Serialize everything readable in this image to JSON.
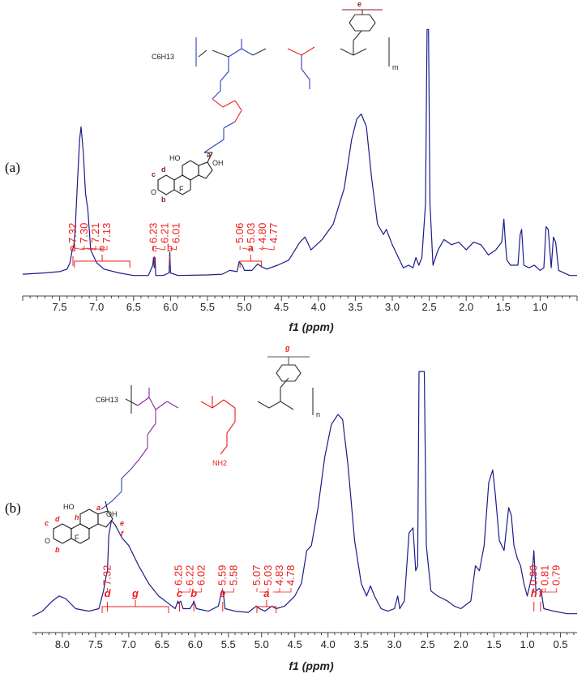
{
  "figure": {
    "colors": {
      "spectrum": "#1c1c8a",
      "annotation": "#ee1c1c",
      "axis": "#444444",
      "blue_linker": "#2b3fc4",
      "purple_backbone": "#8a2ba0",
      "dark_red": "#8b1a1a"
    }
  },
  "chart_data": [
    {
      "panel_label": "(a)",
      "type": "line",
      "xlabel": "f1 (ppm)",
      "xlim": [
        8.0,
        0.5
      ],
      "x_reversed": true,
      "x_ticks": [
        "7.5",
        "7.0",
        "6.5",
        "6.0",
        "5.5",
        "5.0",
        "4.5",
        "4.0",
        "3.5",
        "3.0",
        "2.5",
        "2.0",
        "1.5",
        "1.0"
      ],
      "peak_labels": [
        "7.32",
        "7.30",
        "7.21",
        "7.13",
        "6.23",
        "6.21",
        "6.01",
        "5.06",
        "5.03",
        "4.80",
        "4.77"
      ],
      "assignments": [
        {
          "label": "d",
          "ppm": [
            7.32,
            7.32
          ]
        },
        {
          "label": "e",
          "ppm": [
            7.3,
            6.55
          ]
        },
        {
          "label": "c",
          "ppm": [
            6.23,
            6.21
          ]
        },
        {
          "label": "b",
          "ppm": [
            6.01,
            6.01
          ]
        },
        {
          "label": "a",
          "ppm": [
            5.06,
            4.77
          ]
        }
      ],
      "structure_labels": [
        "e",
        "m",
        "C6H13",
        "a",
        "b",
        "c",
        "d",
        "F",
        "OH",
        "HO",
        "O"
      ],
      "series": [
        {
          "values": [
            [
              8.0,
              0.025
            ],
            [
              7.7,
              0.03
            ],
            [
              7.5,
              0.035
            ],
            [
              7.4,
              0.045
            ],
            [
              7.36,
              0.07
            ],
            [
              7.33,
              0.12
            ],
            [
              7.31,
              0.13
            ],
            [
              7.29,
              0.2
            ],
            [
              7.26,
              0.38
            ],
            [
              7.23,
              0.55
            ],
            [
              7.21,
              0.6
            ],
            [
              7.18,
              0.5
            ],
            [
              7.15,
              0.34
            ],
            [
              7.12,
              0.28
            ],
            [
              7.08,
              0.12
            ],
            [
              7.0,
              0.07
            ],
            [
              6.9,
              0.045
            ],
            [
              6.7,
              0.03
            ],
            [
              6.5,
              0.02
            ],
            [
              6.3,
              0.02
            ],
            [
              6.24,
              0.06
            ],
            [
              6.23,
              0.09
            ],
            [
              6.22,
              0.05
            ],
            [
              6.21,
              0.09
            ],
            [
              6.2,
              0.02
            ],
            [
              6.1,
              0.02
            ],
            [
              6.02,
              0.03
            ],
            [
              6.01,
              0.11
            ],
            [
              6.0,
              0.03
            ],
            [
              5.9,
              0.02
            ],
            [
              5.5,
              0.022
            ],
            [
              5.3,
              0.025
            ],
            [
              5.2,
              0.04
            ],
            [
              5.1,
              0.035
            ],
            [
              5.07,
              0.075
            ],
            [
              5.06,
              0.07
            ],
            [
              5.03,
              0.06
            ],
            [
              5.0,
              0.04
            ],
            [
              4.9,
              0.04
            ],
            [
              4.82,
              0.065
            ],
            [
              4.8,
              0.06
            ],
            [
              4.77,
              0.055
            ],
            [
              4.7,
              0.045
            ],
            [
              4.55,
              0.06
            ],
            [
              4.4,
              0.08
            ],
            [
              4.25,
              0.15
            ],
            [
              4.18,
              0.17
            ],
            [
              4.1,
              0.12
            ],
            [
              3.95,
              0.16
            ],
            [
              3.8,
              0.22
            ],
            [
              3.65,
              0.36
            ],
            [
              3.55,
              0.55
            ],
            [
              3.48,
              0.63
            ],
            [
              3.42,
              0.65
            ],
            [
              3.35,
              0.6
            ],
            [
              3.28,
              0.4
            ],
            [
              3.2,
              0.22
            ],
            [
              3.12,
              0.18
            ],
            [
              3.08,
              0.2
            ],
            [
              3.0,
              0.14
            ],
            [
              2.9,
              0.08
            ],
            [
              2.85,
              0.05
            ],
            [
              2.78,
              0.06
            ],
            [
              2.72,
              0.05
            ],
            [
              2.68,
              0.09
            ],
            [
              2.64,
              0.06
            ],
            [
              2.6,
              0.09
            ],
            [
              2.55,
              0.3
            ],
            [
              2.53,
              0.98
            ],
            [
              2.51,
              0.98
            ],
            [
              2.49,
              0.3
            ],
            [
              2.45,
              0.06
            ],
            [
              2.38,
              0.12
            ],
            [
              2.3,
              0.16
            ],
            [
              2.2,
              0.14
            ],
            [
              2.1,
              0.15
            ],
            [
              2.0,
              0.12
            ],
            [
              1.9,
              0.15
            ],
            [
              1.8,
              0.14
            ],
            [
              1.7,
              0.1
            ],
            [
              1.6,
              0.12
            ],
            [
              1.52,
              0.15
            ],
            [
              1.49,
              0.24
            ],
            [
              1.47,
              0.15
            ],
            [
              1.45,
              0.08
            ],
            [
              1.4,
              0.06
            ],
            [
              1.3,
              0.06
            ],
            [
              1.27,
              0.18
            ],
            [
              1.25,
              0.2
            ],
            [
              1.22,
              0.06
            ],
            [
              1.15,
              0.05
            ],
            [
              1.08,
              0.06
            ],
            [
              1.0,
              0.04
            ],
            [
              0.95,
              0.05
            ],
            [
              0.92,
              0.21
            ],
            [
              0.89,
              0.2
            ],
            [
              0.85,
              0.05
            ],
            [
              0.82,
              0.17
            ],
            [
              0.79,
              0.15
            ],
            [
              0.75,
              0.04
            ],
            [
              0.6,
              0.02
            ],
            [
              0.5,
              0.02
            ]
          ]
        }
      ]
    },
    {
      "panel_label": "(b)",
      "type": "line",
      "xlabel": "f1 (ppm)",
      "xlim": [
        8.45,
        0.25
      ],
      "x_reversed": true,
      "x_ticks": [
        "8.0",
        "7.5",
        "7.0",
        "6.5",
        "6.0",
        "5.5",
        "5.0",
        "4.5",
        "4.0",
        "3.5",
        "3.0",
        "2.5",
        "2.0",
        "1.5",
        "1.0",
        "0.5"
      ],
      "peak_labels": [
        "7.32",
        "6.25",
        "6.22",
        "6.02",
        "5.59",
        "5.58",
        "5.07",
        "5.03",
        "4.83",
        "4.78",
        "0.90",
        "0.81",
        "0.79"
      ],
      "assignments": [
        {
          "label": "d",
          "ppm": [
            7.32,
            7.32
          ]
        },
        {
          "label": "g",
          "ppm": [
            7.4,
            6.4
          ]
        },
        {
          "label": "c",
          "ppm": [
            6.25,
            6.22
          ]
        },
        {
          "label": "b",
          "ppm": [
            6.02,
            6.02
          ]
        },
        {
          "label": "e",
          "ppm": [
            5.59,
            5.58
          ]
        },
        {
          "label": "a",
          "ppm": [
            5.07,
            4.78
          ]
        },
        {
          "label": "h",
          "ppm": [
            0.9,
            0.9
          ]
        },
        {
          "label": "f",
          "ppm": [
            0.81,
            0.79
          ]
        }
      ],
      "structure_labels": [
        "g",
        "n",
        "C6H13",
        "NH2",
        "a",
        "b",
        "c",
        "d",
        "e",
        "f",
        "h",
        "F",
        "OH",
        "HO",
        "O"
      ],
      "series": [
        {
          "values": [
            [
              8.45,
              0.02
            ],
            [
              8.3,
              0.04
            ],
            [
              8.15,
              0.08
            ],
            [
              8.05,
              0.1
            ],
            [
              7.95,
              0.09
            ],
            [
              7.8,
              0.05
            ],
            [
              7.6,
              0.04
            ],
            [
              7.45,
              0.05
            ],
            [
              7.38,
              0.12
            ],
            [
              7.34,
              0.18
            ],
            [
              7.32,
              0.2
            ],
            [
              7.3,
              0.34
            ],
            [
              7.26,
              0.4
            ],
            [
              7.2,
              0.38
            ],
            [
              7.1,
              0.33
            ],
            [
              7.0,
              0.3
            ],
            [
              6.85,
              0.22
            ],
            [
              6.7,
              0.15
            ],
            [
              6.55,
              0.1
            ],
            [
              6.4,
              0.07
            ],
            [
              6.3,
              0.05
            ],
            [
              6.26,
              0.08
            ],
            [
              6.25,
              0.07
            ],
            [
              6.22,
              0.08
            ],
            [
              6.18,
              0.05
            ],
            [
              6.08,
              0.05
            ],
            [
              6.03,
              0.07
            ],
            [
              6.02,
              0.08
            ],
            [
              5.98,
              0.05
            ],
            [
              5.8,
              0.04
            ],
            [
              5.65,
              0.06
            ],
            [
              5.6,
              0.12
            ],
            [
              5.58,
              0.12
            ],
            [
              5.55,
              0.05
            ],
            [
              5.4,
              0.04
            ],
            [
              5.2,
              0.035
            ],
            [
              5.08,
              0.06
            ],
            [
              5.06,
              0.055
            ],
            [
              5.03,
              0.05
            ],
            [
              4.95,
              0.04
            ],
            [
              4.84,
              0.06
            ],
            [
              4.82,
              0.055
            ],
            [
              4.78,
              0.05
            ],
            [
              4.65,
              0.06
            ],
            [
              4.5,
              0.1
            ],
            [
              4.4,
              0.15
            ],
            [
              4.32,
              0.28
            ],
            [
              4.25,
              0.3
            ],
            [
              4.15,
              0.45
            ],
            [
              4.05,
              0.65
            ],
            [
              3.95,
              0.78
            ],
            [
              3.85,
              0.82
            ],
            [
              3.78,
              0.8
            ],
            [
              3.7,
              0.62
            ],
            [
              3.6,
              0.32
            ],
            [
              3.5,
              0.15
            ],
            [
              3.42,
              0.1
            ],
            [
              3.36,
              0.14
            ],
            [
              3.3,
              0.1
            ],
            [
              3.2,
              0.05
            ],
            [
              3.1,
              0.04
            ],
            [
              3.0,
              0.05
            ],
            [
              2.95,
              0.1
            ],
            [
              2.92,
              0.05
            ],
            [
              2.85,
              0.08
            ],
            [
              2.78,
              0.35
            ],
            [
              2.72,
              0.37
            ],
            [
              2.68,
              0.2
            ],
            [
              2.65,
              0.22
            ],
            [
              2.63,
              0.99
            ],
            [
              2.6,
              0.99
            ],
            [
              2.58,
              0.99
            ],
            [
              2.55,
              0.99
            ],
            [
              2.52,
              0.3
            ],
            [
              2.45,
              0.12
            ],
            [
              2.35,
              0.1
            ],
            [
              2.2,
              0.08
            ],
            [
              2.1,
              0.06
            ],
            [
              2.0,
              0.05
            ],
            [
              1.85,
              0.08
            ],
            [
              1.78,
              0.22
            ],
            [
              1.72,
              0.2
            ],
            [
              1.65,
              0.3
            ],
            [
              1.58,
              0.55
            ],
            [
              1.52,
              0.6
            ],
            [
              1.48,
              0.5
            ],
            [
              1.42,
              0.32
            ],
            [
              1.35,
              0.28
            ],
            [
              1.28,
              0.45
            ],
            [
              1.24,
              0.42
            ],
            [
              1.2,
              0.3
            ],
            [
              1.15,
              0.25
            ],
            [
              1.1,
              0.22
            ],
            [
              1.05,
              0.15
            ],
            [
              1.0,
              0.1
            ],
            [
              0.93,
              0.18
            ],
            [
              0.9,
              0.28
            ],
            [
              0.87,
              0.12
            ],
            [
              0.82,
              0.13
            ],
            [
              0.79,
              0.12
            ],
            [
              0.75,
              0.05
            ],
            [
              0.6,
              0.04
            ],
            [
              0.4,
              0.03
            ],
            [
              0.25,
              0.03
            ]
          ]
        }
      ]
    }
  ]
}
